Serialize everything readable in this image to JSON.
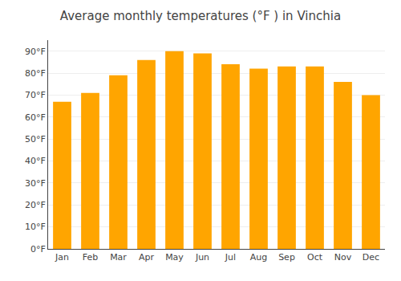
{
  "chart_data": {
    "type": "bar",
    "title": "Average monthly temperatures (°F ) in Vinchia",
    "categories": [
      "Jan",
      "Feb",
      "Mar",
      "Apr",
      "May",
      "Jun",
      "Jul",
      "Aug",
      "Sep",
      "Oct",
      "Nov",
      "Dec"
    ],
    "values": [
      67,
      71,
      79,
      86,
      90,
      89,
      84,
      82,
      83,
      83,
      76,
      70
    ],
    "color": "#FFA500",
    "ylim": [
      0,
      95
    ],
    "yticks": [
      {
        "value": 0,
        "label": "0°F"
      },
      {
        "value": 10,
        "label": "10°F"
      },
      {
        "value": 20,
        "label": "20°F"
      },
      {
        "value": 30,
        "label": "30°F"
      },
      {
        "value": 40,
        "label": "40°F"
      },
      {
        "value": 50,
        "label": "50°F"
      },
      {
        "value": 60,
        "label": "60°F"
      },
      {
        "value": 70,
        "label": "70°F"
      },
      {
        "value": 80,
        "label": "80°F"
      },
      {
        "value": 90,
        "label": "90°F"
      }
    ],
    "grid": true
  }
}
